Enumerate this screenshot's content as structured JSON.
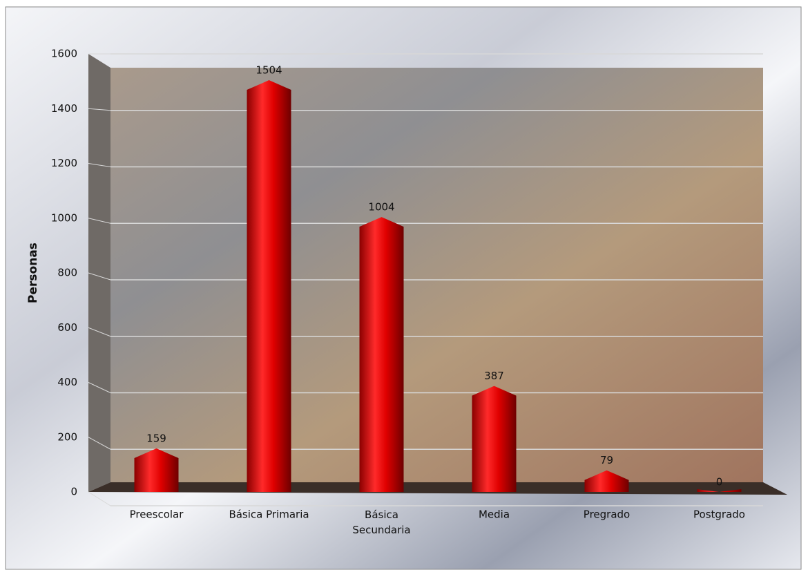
{
  "chart_data": {
    "type": "bar",
    "y_label": "Personas",
    "categories": [
      "Preescolar",
      "Básica Primaria",
      "Básica Secundaria",
      "Media",
      "Pregrado",
      "Postgrado"
    ],
    "values": [
      159,
      1504,
      1004,
      387,
      79,
      0
    ],
    "color": "#e00000",
    "ylim": [
      0,
      1600
    ],
    "yticks": [
      0,
      200,
      400,
      600,
      800,
      1000,
      1200,
      1400,
      1600
    ],
    "grid": true
  }
}
